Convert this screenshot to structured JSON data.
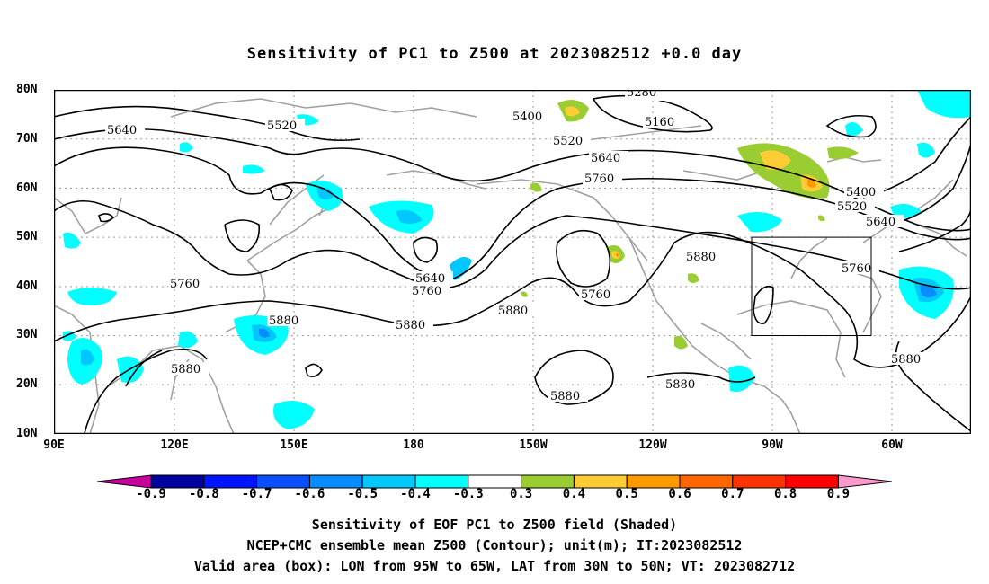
{
  "title": "Sensitivity of PC1 to Z500 at 2023082512 +0.0 day",
  "lat_labels": [
    "80N",
    "70N",
    "60N",
    "50N",
    "40N",
    "30N",
    "20N",
    "10N"
  ],
  "lon_labels": [
    "90E",
    "120E",
    "150E",
    "180",
    "150W",
    "120W",
    "90W",
    "60W"
  ],
  "contour_labels": {
    "c5280": "5280",
    "c5160": "5160",
    "c5400a": "5400",
    "c5520a": "5520",
    "c5640a": "5640",
    "c5520b": "5520",
    "c5640b": "5640",
    "c5760a": "5760",
    "c5400b": "5400",
    "c5520c": "5520",
    "c5640c": "5640",
    "c5760b": "5760",
    "c5760c": "5760",
    "c5880a": "5880",
    "c5640d": "5640",
    "c5760d": "5760",
    "c5880b": "5880",
    "c5880c": "5880",
    "c5880d": "5880",
    "c5880e": "5880",
    "c5760e": "5760",
    "c5880f": "5880",
    "c5880g": "5880",
    "c5880h": "5880",
    "c5760f": "5760"
  },
  "colorbar": {
    "labels": [
      "-0.9",
      "-0.8",
      "-0.7",
      "-0.6",
      "-0.5",
      "-0.4",
      "-0.3",
      "0.3",
      "0.4",
      "0.5",
      "0.6",
      "0.7",
      "0.8",
      "0.9"
    ],
    "colors": [
      "#0000a0",
      "#0014ff",
      "#0a50ff",
      "#0a8cff",
      "#00c8ff",
      "#00ffff",
      "#ffffff",
      "#9acd32",
      "#ffcc33",
      "#ff9900",
      "#ff6600",
      "#ff3300",
      "#ff0000"
    ],
    "low_color": "#c8009c",
    "high_color": "#ff99cc"
  },
  "captions": [
    "Sensitivity of EOF PC1 to Z500 field (Shaded)",
    "NCEP+CMC ensemble mean Z500 (Contour); unit(m); IT:2023082512",
    "Valid area (box): LON from 95W to 65W, LAT from 30N to 50N; VT: 2023082712"
  ],
  "valid_box": {
    "lon_range": [
      "95W",
      "65W"
    ],
    "lat_range": [
      "30N",
      "50N"
    ]
  }
}
